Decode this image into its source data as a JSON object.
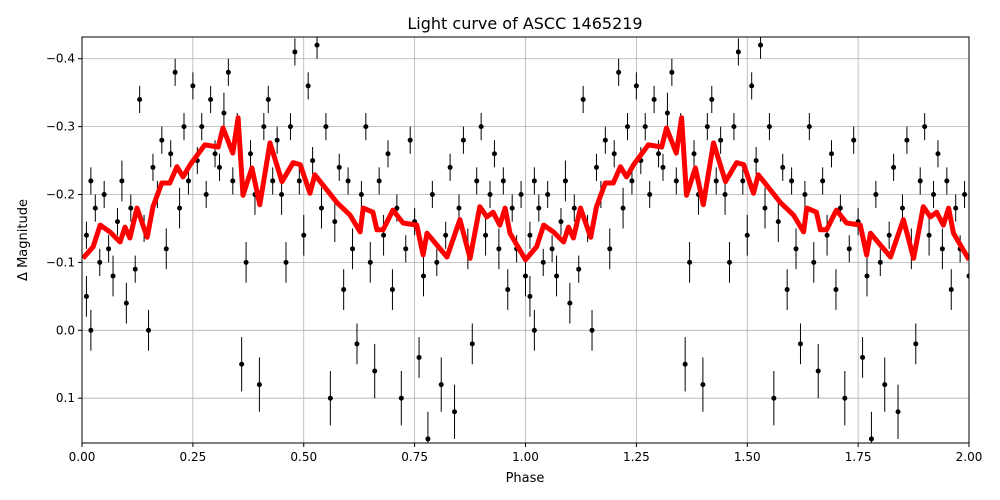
{
  "chart_data": {
    "type": "scatter",
    "title": "Light curve of ASCC 1465219",
    "xlabel": "Phase",
    "ylabel": "Δ Magnitude",
    "xlim": [
      0,
      2.0
    ],
    "ylim": [
      0.166,
      -0.432
    ],
    "y_inverted": true,
    "grid": true,
    "xticks": [
      "0.00",
      "0.25",
      "0.50",
      "0.75",
      "1.00",
      "1.25",
      "1.50",
      "1.75",
      "2.00"
    ],
    "xtick_values": [
      0,
      0.25,
      0.5,
      0.75,
      1.0,
      1.25,
      1.5,
      1.75,
      2.0
    ],
    "yticks": [
      "−0.4",
      "−0.3",
      "−0.2",
      "−0.1",
      "0.0",
      "0.1"
    ],
    "ytick_values": [
      -0.4,
      -0.3,
      -0.2,
      -0.1,
      0.0,
      0.1
    ],
    "colors": {
      "points": "#000000",
      "binned_curve": "#ff0000",
      "grid": "#b0b0b0"
    },
    "series": [
      {
        "kind": "errorbar-points",
        "note_visible": "dense cloud of black points with vertical error bars, repeated each phase cycle",
        "points_sample": [
          [
            0.01,
            -0.14,
            0.02
          ],
          [
            0.01,
            -0.05,
            0.03
          ],
          [
            0.02,
            -0.22,
            0.02
          ],
          [
            0.02,
            0.0,
            0.03
          ],
          [
            0.03,
            -0.18,
            0.02
          ],
          [
            0.04,
            -0.1,
            0.02
          ],
          [
            0.05,
            -0.2,
            0.02
          ],
          [
            0.06,
            -0.12,
            0.02
          ],
          [
            0.07,
            -0.08,
            0.03
          ],
          [
            0.08,
            -0.16,
            0.02
          ],
          [
            0.09,
            -0.22,
            0.03
          ],
          [
            0.1,
            -0.04,
            0.03
          ],
          [
            0.11,
            -0.18,
            0.02
          ],
          [
            0.12,
            -0.09,
            0.02
          ],
          [
            0.13,
            -0.34,
            0.02
          ],
          [
            0.14,
            -0.15,
            0.02
          ],
          [
            0.15,
            0.0,
            0.03
          ],
          [
            0.16,
            -0.24,
            0.02
          ],
          [
            0.17,
            -0.2,
            0.02
          ],
          [
            0.18,
            -0.28,
            0.02
          ],
          [
            0.19,
            -0.12,
            0.03
          ],
          [
            0.2,
            -0.26,
            0.02
          ],
          [
            0.21,
            -0.38,
            0.02
          ],
          [
            0.22,
            -0.18,
            0.03
          ],
          [
            0.23,
            -0.3,
            0.02
          ],
          [
            0.24,
            -0.22,
            0.02
          ],
          [
            0.25,
            -0.36,
            0.02
          ],
          [
            0.26,
            -0.25,
            0.02
          ],
          [
            0.27,
            -0.3,
            0.02
          ],
          [
            0.28,
            -0.2,
            0.02
          ],
          [
            0.29,
            -0.34,
            0.02
          ],
          [
            0.3,
            -0.26,
            0.02
          ],
          [
            0.31,
            -0.24,
            0.02
          ],
          [
            0.32,
            -0.32,
            0.03
          ],
          [
            0.33,
            -0.38,
            0.02
          ],
          [
            0.34,
            -0.22,
            0.02
          ],
          [
            0.35,
            -0.3,
            0.02
          ],
          [
            0.36,
            0.05,
            0.04
          ],
          [
            0.37,
            -0.1,
            0.03
          ],
          [
            0.38,
            -0.26,
            0.02
          ],
          [
            0.39,
            -0.2,
            0.03
          ],
          [
            0.4,
            0.08,
            0.04
          ],
          [
            0.41,
            -0.3,
            0.02
          ],
          [
            0.42,
            -0.34,
            0.02
          ],
          [
            0.43,
            -0.22,
            0.02
          ],
          [
            0.44,
            -0.28,
            0.02
          ],
          [
            0.45,
            -0.2,
            0.03
          ],
          [
            0.46,
            -0.1,
            0.03
          ],
          [
            0.47,
            -0.3,
            0.02
          ],
          [
            0.48,
            -0.41,
            0.02
          ],
          [
            0.49,
            -0.22,
            0.02
          ],
          [
            0.5,
            -0.14,
            0.03
          ],
          [
            0.51,
            -0.36,
            0.02
          ],
          [
            0.52,
            -0.25,
            0.02
          ],
          [
            0.53,
            -0.42,
            0.02
          ],
          [
            0.54,
            -0.18,
            0.03
          ],
          [
            0.55,
            -0.3,
            0.02
          ],
          [
            0.56,
            0.1,
            0.04
          ],
          [
            0.57,
            -0.16,
            0.03
          ],
          [
            0.58,
            -0.24,
            0.02
          ],
          [
            0.59,
            -0.06,
            0.03
          ],
          [
            0.6,
            -0.22,
            0.02
          ],
          [
            0.61,
            -0.12,
            0.03
          ],
          [
            0.62,
            0.02,
            0.03
          ],
          [
            0.63,
            -0.2,
            0.02
          ],
          [
            0.64,
            -0.3,
            0.02
          ],
          [
            0.65,
            -0.1,
            0.03
          ],
          [
            0.66,
            0.06,
            0.04
          ],
          [
            0.67,
            -0.22,
            0.02
          ],
          [
            0.68,
            -0.14,
            0.03
          ],
          [
            0.69,
            -0.26,
            0.02
          ],
          [
            0.7,
            -0.06,
            0.03
          ],
          [
            0.71,
            -0.18,
            0.02
          ],
          [
            0.72,
            0.1,
            0.04
          ],
          [
            0.73,
            -0.12,
            0.02
          ],
          [
            0.74,
            -0.28,
            0.02
          ],
          [
            0.75,
            -0.16,
            0.02
          ],
          [
            0.76,
            0.04,
            0.03
          ],
          [
            0.77,
            -0.08,
            0.03
          ],
          [
            0.78,
            0.16,
            0.04
          ],
          [
            0.79,
            -0.2,
            0.02
          ],
          [
            0.8,
            -0.1,
            0.02
          ],
          [
            0.81,
            0.08,
            0.04
          ],
          [
            0.82,
            -0.14,
            0.02
          ],
          [
            0.83,
            -0.24,
            0.02
          ],
          [
            0.84,
            0.12,
            0.04
          ],
          [
            0.85,
            -0.18,
            0.02
          ],
          [
            0.86,
            -0.28,
            0.02
          ],
          [
            0.87,
            -0.12,
            0.03
          ],
          [
            0.88,
            0.02,
            0.03
          ],
          [
            0.89,
            -0.22,
            0.02
          ],
          [
            0.9,
            -0.3,
            0.02
          ],
          [
            0.91,
            -0.14,
            0.03
          ],
          [
            0.92,
            -0.2,
            0.02
          ],
          [
            0.93,
            -0.26,
            0.02
          ],
          [
            0.94,
            -0.12,
            0.03
          ],
          [
            0.95,
            -0.22,
            0.02
          ],
          [
            0.96,
            -0.06,
            0.03
          ],
          [
            0.97,
            -0.18,
            0.02
          ],
          [
            0.98,
            -0.12,
            0.02
          ],
          [
            0.99,
            -0.2,
            0.02
          ],
          [
            1.0,
            -0.08,
            0.03
          ]
        ]
      },
      {
        "kind": "binned-line",
        "x": [
          0.002,
          0.025,
          0.041,
          0.063,
          0.086,
          0.097,
          0.108,
          0.124,
          0.147,
          0.16,
          0.18,
          0.198,
          0.214,
          0.228,
          0.244,
          0.277,
          0.307,
          0.318,
          0.34,
          0.352,
          0.363,
          0.383,
          0.401,
          0.424,
          0.451,
          0.476,
          0.492,
          0.514,
          0.525,
          0.552,
          0.575,
          0.604,
          0.627,
          0.634,
          0.656,
          0.665,
          0.679,
          0.701,
          0.724,
          0.755,
          0.769,
          0.778,
          0.823,
          0.852,
          0.875,
          0.897,
          0.913,
          0.927,
          0.942,
          0.954,
          0.965,
          1.0,
          1.025,
          1.041,
          1.063,
          1.086,
          1.097,
          1.108,
          1.124,
          1.147,
          1.16,
          1.18,
          1.198,
          1.214,
          1.228,
          1.244,
          1.277,
          1.307,
          1.318,
          1.34,
          1.352,
          1.363,
          1.383,
          1.401,
          1.424,
          1.451,
          1.476,
          1.492,
          1.514,
          1.525,
          1.552,
          1.575,
          1.604,
          1.627,
          1.634,
          1.656,
          1.665,
          1.679,
          1.701,
          1.724,
          1.755,
          1.769,
          1.778,
          1.823,
          1.852,
          1.875,
          1.897,
          1.913,
          1.927,
          1.942,
          1.954,
          1.965,
          2.0
        ],
        "y": [
          -0.106,
          -0.123,
          -0.155,
          -0.145,
          -0.13,
          -0.152,
          -0.136,
          -0.18,
          -0.137,
          -0.182,
          -0.217,
          -0.217,
          -0.241,
          -0.226,
          -0.244,
          -0.273,
          -0.27,
          -0.298,
          -0.261,
          -0.313,
          -0.199,
          -0.239,
          -0.185,
          -0.276,
          -0.219,
          -0.247,
          -0.244,
          -0.202,
          -0.229,
          -0.207,
          -0.188,
          -0.17,
          -0.145,
          -0.18,
          -0.174,
          -0.148,
          -0.148,
          -0.177,
          -0.158,
          -0.155,
          -0.111,
          -0.143,
          -0.108,
          -0.163,
          -0.106,
          -0.182,
          -0.167,
          -0.174,
          -0.155,
          -0.18,
          -0.143,
          -0.104,
          -0.123,
          -0.155,
          -0.145,
          -0.13,
          -0.152,
          -0.136,
          -0.18,
          -0.137,
          -0.182,
          -0.217,
          -0.217,
          -0.241,
          -0.226,
          -0.244,
          -0.273,
          -0.27,
          -0.298,
          -0.261,
          -0.313,
          -0.199,
          -0.239,
          -0.185,
          -0.276,
          -0.219,
          -0.247,
          -0.244,
          -0.202,
          -0.229,
          -0.207,
          -0.188,
          -0.17,
          -0.145,
          -0.18,
          -0.174,
          -0.148,
          -0.148,
          -0.177,
          -0.158,
          -0.155,
          -0.111,
          -0.143,
          -0.108,
          -0.163,
          -0.106,
          -0.182,
          -0.167,
          -0.174,
          -0.155,
          -0.18,
          -0.143,
          -0.104
        ]
      }
    ]
  }
}
